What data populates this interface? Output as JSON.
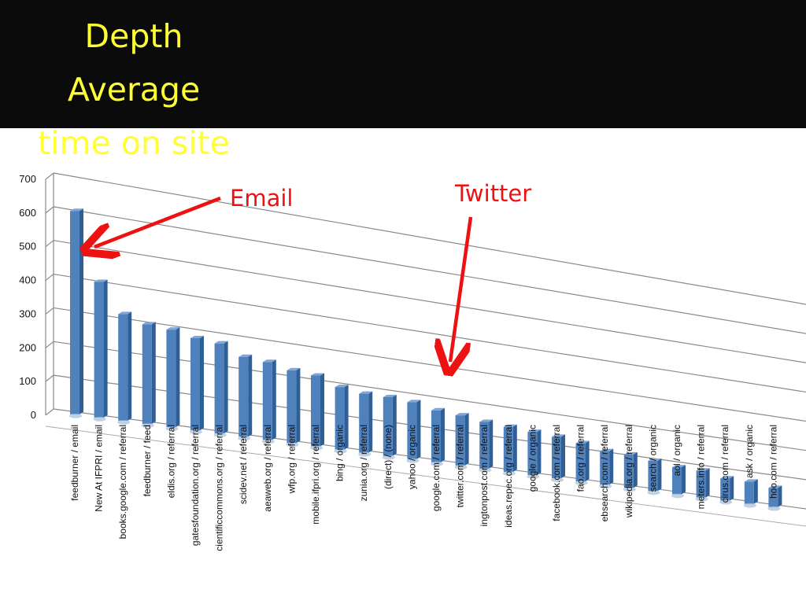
{
  "slide": {
    "title_lines": [
      "Depth",
      "Average",
      "time on site"
    ]
  },
  "colors": {
    "background_top": "#0b0b0b",
    "title": "#ffff33",
    "bar": "#4f81bd",
    "annotation": "#ee1111"
  },
  "annotations": {
    "email": "Email",
    "twitter": "Twitter"
  },
  "chart_data": {
    "type": "bar",
    "style": "3d-column",
    "title": "",
    "xlabel": "",
    "ylabel": "",
    "ylim": [
      0,
      700
    ],
    "yticks": [
      0,
      100,
      200,
      300,
      400,
      500,
      600,
      700
    ],
    "grid": true,
    "legend": "none",
    "categories": [
      "feedburner / email",
      "New At IFPRI / email",
      "books.google.com / referral",
      "feedburner / feed",
      "eldis.org / referral",
      "gatesfoundation.org / referral",
      "cientificcommons.org / referral",
      "scidev.net / referral",
      "aeaweb.org / referral",
      "wfp.org / referral",
      "mobile.ifpri.org / referral",
      "bing / organic",
      "zunia.org / referral",
      "(direct) / (none)",
      "yahoo / organic",
      "google.com / referral",
      "twitter.com / referral",
      "ingtonpost.com / referral",
      "ideas.repec.org / referral",
      "google / organic",
      "facebook.com / referral",
      "fao.org / referral",
      "ebsearch.com / referral",
      "wikipedia.org / referral",
      "search / organic",
      "aol / organic",
      "meters.info / referral",
      "cirus.com / referral",
      "ask / organic",
      "hoo.com / referral"
    ],
    "values": [
      605,
      405,
      320,
      300,
      295,
      280,
      275,
      245,
      240,
      225,
      220,
      195,
      185,
      185,
      180,
      165,
      160,
      150,
      145,
      140,
      135,
      125,
      110,
      110,
      100,
      90,
      90,
      75,
      75,
      65
    ]
  }
}
